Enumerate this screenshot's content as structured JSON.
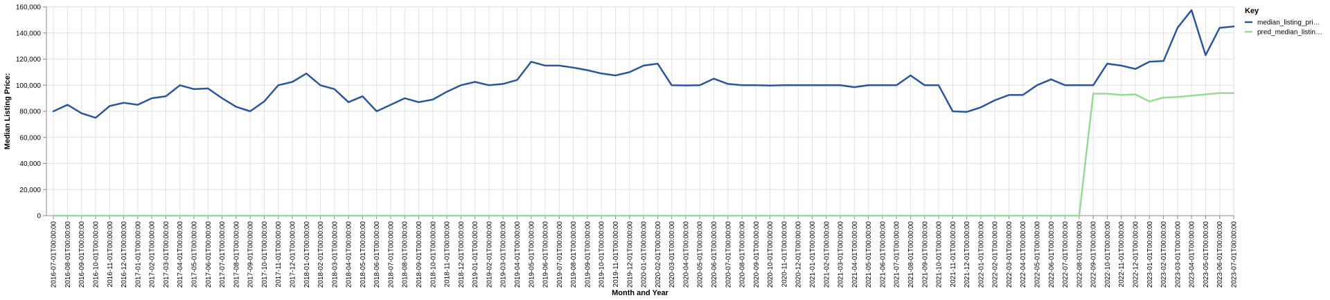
{
  "chart_data": {
    "type": "line",
    "xlabel": "Month and Year",
    "ylabel": "Median Listing Price:",
    "ylim": [
      0,
      160000
    ],
    "y_ticks": [
      0,
      20000,
      40000,
      60000,
      80000,
      100000,
      120000,
      140000,
      160000
    ],
    "y_tick_labels": [
      "0",
      "20,000",
      "40,000",
      "60,000",
      "80,000",
      "100,000",
      "120,000",
      "140,000",
      "160,000"
    ],
    "grid": true,
    "legend": {
      "title": "Key",
      "position": "right",
      "entries": [
        "median_listing_pri…",
        "pred_median_listin…"
      ]
    },
    "x": [
      "2016-07-01T00:00:00",
      "2016-08-01T00:00:00",
      "2016-09-01T00:00:00",
      "2016-10-01T00:00:00",
      "2016-11-01T00:00:00",
      "2016-12-01T00:00:00",
      "2017-01-01T00:00:00",
      "2017-02-01T00:00:00",
      "2017-03-01T00:00:00",
      "2017-04-01T00:00:00",
      "2017-05-01T00:00:00",
      "2017-06-01T00:00:00",
      "2017-07-01T00:00:00",
      "2017-08-01T00:00:00",
      "2017-09-01T00:00:00",
      "2017-10-01T00:00:00",
      "2017-11-01T00:00:00",
      "2017-12-01T00:00:00",
      "2018-01-01T00:00:00",
      "2018-02-01T00:00:00",
      "2018-03-01T00:00:00",
      "2018-04-01T00:00:00",
      "2018-05-01T00:00:00",
      "2018-06-01T00:00:00",
      "2018-07-01T00:00:00",
      "2018-08-01T00:00:00",
      "2018-09-01T00:00:00",
      "2018-10-01T00:00:00",
      "2018-11-01T00:00:00",
      "2018-12-01T00:00:00",
      "2019-01-01T00:00:00",
      "2019-02-01T00:00:00",
      "2019-03-01T00:00:00",
      "2019-04-01T00:00:00",
      "2019-05-01T00:00:00",
      "2019-06-01T00:00:00",
      "2019-07-01T00:00:00",
      "2019-08-01T00:00:00",
      "2019-09-01T00:00:00",
      "2019-10-01T00:00:00",
      "2019-11-01T00:00:00",
      "2019-12-01T00:00:00",
      "2020-01-01T00:00:00",
      "2020-02-01T00:00:00",
      "2020-03-01T00:00:00",
      "2020-04-01T00:00:00",
      "2020-05-01T00:00:00",
      "2020-06-01T00:00:00",
      "2020-07-01T00:00:00",
      "2020-08-01T00:00:00",
      "2020-09-01T00:00:00",
      "2020-10-01T00:00:00",
      "2020-11-01T00:00:00",
      "2020-12-01T00:00:00",
      "2021-01-01T00:00:00",
      "2021-02-01T00:00:00",
      "2021-03-01T00:00:00",
      "2021-04-01T00:00:00",
      "2021-05-01T00:00:00",
      "2021-06-01T00:00:00",
      "2021-07-01T00:00:00",
      "2021-08-01T00:00:00",
      "2021-09-01T00:00:00",
      "2021-10-01T00:00:00",
      "2021-11-01T00:00:00",
      "2021-12-01T00:00:00",
      "2022-01-01T00:00:00",
      "2022-02-01T00:00:00",
      "2022-03-01T00:00:00",
      "2022-04-01T00:00:00",
      "2022-05-01T00:00:00",
      "2022-06-01T00:00:00",
      "2022-07-01T00:00:00",
      "2022-08-01T00:00:00",
      "2022-09-01T00:00:00",
      "2022-10-01T00:00:00",
      "2022-11-01T00:00:00",
      "2022-12-01T00:00:00",
      "2023-01-01T00:00:00",
      "2023-02-01T00:00:00",
      "2023-03-01T00:00:00",
      "2023-04-01T00:00:00",
      "2023-05-01T00:00:00",
      "2023-06-01T00:00:00",
      "2023-07-01T00:00:00"
    ],
    "series": [
      {
        "name": "median_listing_pri…",
        "color": "#2a5599",
        "values": [
          80000,
          85000,
          78500,
          75000,
          84000,
          86500,
          85000,
          90000,
          91500,
          100000,
          97000,
          97500,
          90000,
          83500,
          80000,
          87500,
          100000,
          102500,
          109000,
          100000,
          97000,
          87000,
          91500,
          80000,
          85000,
          90000,
          87000,
          89000,
          95000,
          100000,
          102500,
          100000,
          101000,
          104000,
          118000,
          115000,
          115000,
          113500,
          111500,
          109000,
          107500,
          110000,
          115000,
          116500,
          100000,
          99800,
          100000,
          105000,
          101000,
          100000,
          100000,
          99700,
          100000,
          100000,
          100000,
          100000,
          100000,
          98500,
          100000,
          100000,
          100000,
          107500,
          100000,
          100000,
          80000,
          79500,
          83000,
          88500,
          92500,
          92500,
          100000,
          104500,
          100000,
          100000,
          100000,
          116500,
          115000,
          112500,
          118000,
          118500,
          144000,
          157500,
          123000,
          144000,
          145000
        ]
      },
      {
        "name": "pred_median_listin…",
        "color": "#98d995",
        "values": [
          0,
          0,
          0,
          0,
          0,
          0,
          0,
          0,
          0,
          0,
          0,
          0,
          0,
          0,
          0,
          0,
          0,
          0,
          0,
          0,
          0,
          0,
          0,
          0,
          0,
          0,
          0,
          0,
          0,
          0,
          0,
          0,
          0,
          0,
          0,
          0,
          0,
          0,
          0,
          0,
          0,
          0,
          0,
          0,
          0,
          0,
          0,
          0,
          0,
          0,
          0,
          0,
          0,
          0,
          0,
          0,
          0,
          0,
          0,
          0,
          0,
          0,
          0,
          0,
          0,
          0,
          0,
          0,
          0,
          0,
          0,
          0,
          0,
          0,
          93500,
          93500,
          92500,
          93000,
          87500,
          90500,
          91000,
          92000,
          93000,
          94000,
          94000
        ]
      }
    ]
  }
}
